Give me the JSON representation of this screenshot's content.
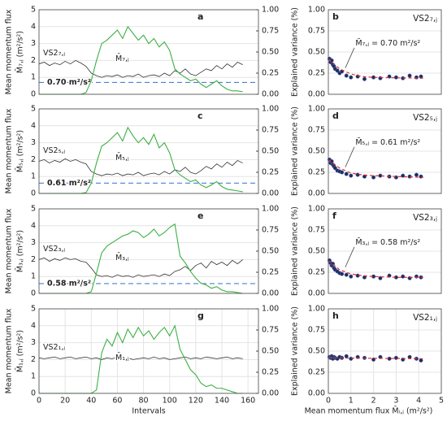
{
  "chart_data": [
    {
      "type": "line",
      "panel": "a",
      "ylabel": [
        "Mean momentum flux",
        "M̄₇,ⱼ (m²/s²)"
      ],
      "y2label": "Explained variance (%)",
      "x": [
        0,
        4,
        8,
        12,
        16,
        20,
        24,
        28,
        32,
        36,
        40,
        44,
        48,
        52,
        56,
        60,
        64,
        68,
        72,
        76,
        80,
        84,
        88,
        92,
        96,
        100,
        104,
        108,
        112,
        116,
        120,
        124,
        128,
        132,
        136,
        140,
        144,
        148,
        152,
        156
      ],
      "xlim": [
        0,
        168
      ],
      "ylim": [
        0,
        5
      ],
      "yticks": [
        0,
        1,
        2,
        3,
        4,
        5
      ],
      "y2lim": [
        0,
        1
      ],
      "y2ticks": [
        {
          "value": 0,
          "label": "0.00"
        },
        {
          "value": 0.25,
          "label": "0.25"
        },
        {
          "value": 0.5,
          "label": "0.50"
        },
        {
          "value": 0.75,
          "label": "0.75"
        },
        {
          "value": 1,
          "label": "1.00"
        }
      ],
      "series": [
        {
          "name": "VS2₇,ⱼ",
          "color": "#333333",
          "axis": "y2",
          "values": [
            0.36,
            0.38,
            0.34,
            0.37,
            0.35,
            0.39,
            0.36,
            0.4,
            0.37,
            0.33,
            0.25,
            0.22,
            0.2,
            0.22,
            0.21,
            0.23,
            0.2,
            0.22,
            0.21,
            0.24,
            0.2,
            0.22,
            0.23,
            0.21,
            0.25,
            0.22,
            0.28,
            0.25,
            0.3,
            0.24,
            0.22,
            0.26,
            0.3,
            0.28,
            0.34,
            0.3,
            0.36,
            0.32,
            0.38,
            0.35
          ]
        },
        {
          "name": "M̄₇,ⱼ",
          "color": "#3cb043",
          "values": [
            0,
            0,
            0,
            0,
            0,
            0,
            0,
            0,
            0,
            0.1,
            0.8,
            2.0,
            3.0,
            3.2,
            3.5,
            3.8,
            3.3,
            4.0,
            3.6,
            3.2,
            3.5,
            3.0,
            3.3,
            2.8,
            3.1,
            2.6,
            1.5,
            1.2,
            1.0,
            0.8,
            0.9,
            0.6,
            0.4,
            0.6,
            0.8,
            0.5,
            0.3,
            0.2,
            0.2,
            0.15
          ]
        }
      ],
      "hline": {
        "value": 0.7,
        "label": "0.70 m²/s²",
        "color": "#4a7fd4"
      }
    },
    {
      "type": "scatter",
      "panel": "b",
      "label": "VS2₇,ⱼ",
      "color": "#1f2d5a",
      "xlim": [
        0,
        5
      ],
      "ylim": [
        0,
        1
      ],
      "yticks": [
        {
          "value": 0,
          "label": "0.00"
        },
        {
          "value": 0.25,
          "label": "0.25"
        },
        {
          "value": 0.5,
          "label": "0.50"
        },
        {
          "value": 0.75,
          "label": "0.75"
        },
        {
          "value": 1,
          "label": "1.00"
        }
      ],
      "x": [
        0.05,
        0.1,
        0.15,
        0.2,
        0.25,
        0.3,
        0.4,
        0.5,
        0.6,
        0.8,
        1.0,
        1.3,
        1.6,
        2.0,
        2.3,
        2.7,
        3.0,
        3.3,
        3.6,
        3.9,
        4.1
      ],
      "values": [
        0.42,
        0.38,
        0.4,
        0.35,
        0.33,
        0.3,
        0.28,
        0.25,
        0.27,
        0.22,
        0.2,
        0.21,
        0.18,
        0.2,
        0.19,
        0.21,
        0.2,
        0.19,
        0.22,
        0.2,
        0.21
      ],
      "fit": {
        "color": "#e03030",
        "x": [
          0,
          0.5,
          1,
          1.5,
          2,
          3,
          4.2
        ],
        "values": [
          0.42,
          0.3,
          0.24,
          0.21,
          0.2,
          0.195,
          0.19
        ]
      },
      "annotation": "M̄₇,ⱼ = 0.70 m²/s²"
    },
    {
      "type": "line",
      "panel": "c",
      "ylabel": [
        "Mean momentum flux",
        "M̄₅,ⱼ (m²/s²)"
      ],
      "y2label": "Explained variance (%)",
      "x": [
        0,
        4,
        8,
        12,
        16,
        20,
        24,
        28,
        32,
        36,
        40,
        44,
        48,
        52,
        56,
        60,
        64,
        68,
        72,
        76,
        80,
        84,
        88,
        92,
        96,
        100,
        104,
        108,
        112,
        116,
        120,
        124,
        128,
        132,
        136,
        140,
        144,
        148,
        152,
        156
      ],
      "xlim": [
        0,
        168
      ],
      "ylim": [
        0,
        5
      ],
      "yticks": [
        0,
        1,
        2,
        3,
        4,
        5
      ],
      "y2lim": [
        0,
        1
      ],
      "y2ticks": [
        {
          "value": 0,
          "label": "0.00"
        },
        {
          "value": 0.25,
          "label": "0.25"
        },
        {
          "value": 0.5,
          "label": "0.50"
        },
        {
          "value": 0.75,
          "label": "0.75"
        },
        {
          "value": 1,
          "label": "1.00"
        }
      ],
      "series": [
        {
          "name": "VS2₅,ⱼ",
          "color": "#333333",
          "axis": "y2",
          "values": [
            0.38,
            0.4,
            0.36,
            0.39,
            0.37,
            0.41,
            0.38,
            0.4,
            0.37,
            0.35,
            0.26,
            0.23,
            0.21,
            0.23,
            0.22,
            0.24,
            0.21,
            0.23,
            0.22,
            0.25,
            0.21,
            0.23,
            0.24,
            0.22,
            0.26,
            0.23,
            0.28,
            0.26,
            0.31,
            0.25,
            0.23,
            0.27,
            0.32,
            0.29,
            0.35,
            0.31,
            0.37,
            0.33,
            0.39,
            0.36
          ]
        },
        {
          "name": "M̄₅,ⱼ",
          "color": "#3cb043",
          "values": [
            0,
            0,
            0,
            0,
            0,
            0,
            0,
            0,
            0,
            0.05,
            0.6,
            1.8,
            2.8,
            3.0,
            3.3,
            3.6,
            3.1,
            3.9,
            3.4,
            3.0,
            3.3,
            2.9,
            3.5,
            2.7,
            3.0,
            2.4,
            1.4,
            1.1,
            0.9,
            0.7,
            0.8,
            0.5,
            0.35,
            0.5,
            0.7,
            0.4,
            0.25,
            0.2,
            0.15,
            0.1
          ]
        }
      ],
      "hline": {
        "value": 0.61,
        "label": "0.61 m²/s²",
        "color": "#4a7fd4"
      }
    },
    {
      "type": "scatter",
      "panel": "d",
      "label": "VS2₅,ⱼ",
      "color": "#1f2d5a",
      "xlim": [
        0,
        5
      ],
      "ylim": [
        0,
        1
      ],
      "yticks": [
        {
          "value": 0,
          "label": "0.00"
        },
        {
          "value": 0.25,
          "label": "0.25"
        },
        {
          "value": 0.5,
          "label": "0.50"
        },
        {
          "value": 0.75,
          "label": "0.75"
        },
        {
          "value": 1,
          "label": "1.00"
        }
      ],
      "x": [
        0.05,
        0.1,
        0.15,
        0.2,
        0.25,
        0.3,
        0.4,
        0.5,
        0.6,
        0.8,
        1.0,
        1.3,
        1.6,
        2.0,
        2.3,
        2.7,
        3.0,
        3.3,
        3.6,
        3.9,
        4.1
      ],
      "values": [
        0.4,
        0.36,
        0.38,
        0.34,
        0.32,
        0.3,
        0.27,
        0.26,
        0.25,
        0.23,
        0.21,
        0.22,
        0.2,
        0.19,
        0.21,
        0.2,
        0.19,
        0.21,
        0.2,
        0.22,
        0.2
      ],
      "fit": {
        "color": "#e03030",
        "x": [
          0,
          0.5,
          1,
          1.5,
          2,
          3,
          4.2
        ],
        "values": [
          0.4,
          0.3,
          0.24,
          0.22,
          0.21,
          0.2,
          0.19
        ]
      },
      "annotation": "M̄₅,ⱼ = 0.61 m²/s²"
    },
    {
      "type": "line",
      "panel": "e",
      "ylabel": [
        "Mean momentum flux",
        "M̄₃,ⱼ (m²/s²)"
      ],
      "y2label": "Explained variance (%)",
      "x": [
        0,
        4,
        8,
        12,
        16,
        20,
        24,
        28,
        32,
        36,
        40,
        44,
        48,
        52,
        56,
        60,
        64,
        68,
        72,
        76,
        80,
        84,
        88,
        92,
        96,
        100,
        104,
        108,
        112,
        116,
        120,
        124,
        128,
        132,
        136,
        140,
        144,
        148,
        152,
        156
      ],
      "xlim": [
        0,
        168
      ],
      "ylim": [
        0,
        5
      ],
      "yticks": [
        0,
        1,
        2,
        3,
        4,
        5
      ],
      "y2lim": [
        0,
        1
      ],
      "y2ticks": [
        {
          "value": 0,
          "label": "0.00"
        },
        {
          "value": 0.25,
          "label": "0.25"
        },
        {
          "value": 0.5,
          "label": "0.50"
        },
        {
          "value": 0.75,
          "label": "0.75"
        },
        {
          "value": 1,
          "label": "1.00"
        }
      ],
      "series": [
        {
          "name": "VS2₃,ⱼ",
          "color": "#333333",
          "axis": "y2",
          "values": [
            0.4,
            0.42,
            0.38,
            0.41,
            0.39,
            0.42,
            0.4,
            0.41,
            0.38,
            0.37,
            0.3,
            0.22,
            0.2,
            0.21,
            0.19,
            0.22,
            0.2,
            0.21,
            0.19,
            0.22,
            0.2,
            0.21,
            0.22,
            0.2,
            0.23,
            0.21,
            0.26,
            0.28,
            0.32,
            0.27,
            0.33,
            0.36,
            0.3,
            0.38,
            0.34,
            0.37,
            0.33,
            0.39,
            0.35,
            0.4
          ]
        },
        {
          "name": "M̄₃,ⱼ",
          "color": "#3cb043",
          "values": [
            0,
            0,
            0,
            0,
            0,
            0,
            0,
            0,
            0,
            0,
            0.1,
            1.2,
            2.4,
            2.8,
            3.0,
            3.2,
            3.4,
            3.5,
            3.7,
            3.6,
            3.3,
            3.5,
            3.8,
            3.4,
            3.6,
            3.9,
            4.1,
            2.2,
            1.8,
            1.3,
            0.9,
            0.6,
            0.5,
            0.3,
            0.4,
            0.2,
            0.1,
            0.1,
            0.05,
            0
          ]
        }
      ],
      "hline": {
        "value": 0.58,
        "label": "0.58 m²/s²",
        "color": "#4a7fd4"
      }
    },
    {
      "type": "scatter",
      "panel": "f",
      "label": "VS2₃,ⱼ",
      "color": "#1f2d5a",
      "xlim": [
        0,
        5
      ],
      "ylim": [
        0,
        1
      ],
      "yticks": [
        {
          "value": 0,
          "label": "0.00"
        },
        {
          "value": 0.25,
          "label": "0.25"
        },
        {
          "value": 0.5,
          "label": "0.50"
        },
        {
          "value": 0.75,
          "label": "0.75"
        },
        {
          "value": 1,
          "label": "1.00"
        }
      ],
      "x": [
        0.05,
        0.1,
        0.15,
        0.2,
        0.25,
        0.3,
        0.4,
        0.5,
        0.6,
        0.8,
        1.0,
        1.3,
        1.6,
        2.0,
        2.3,
        2.7,
        3.0,
        3.3,
        3.6,
        3.9,
        4.1
      ],
      "values": [
        0.39,
        0.36,
        0.33,
        0.35,
        0.3,
        0.28,
        0.26,
        0.24,
        0.23,
        0.22,
        0.2,
        0.21,
        0.19,
        0.2,
        0.18,
        0.21,
        0.19,
        0.2,
        0.18,
        0.2,
        0.19
      ],
      "fit": {
        "color": "#e03030",
        "x": [
          0,
          0.5,
          1,
          1.5,
          2,
          3,
          4.2
        ],
        "values": [
          0.39,
          0.28,
          0.23,
          0.21,
          0.2,
          0.19,
          0.19
        ]
      },
      "annotation": "M̄₃,ⱼ = 0.58 m²/s²"
    },
    {
      "type": "line",
      "panel": "g",
      "ylabel": [
        "Mean momentum flux",
        "M̄₁,ⱼ (m²/s²)"
      ],
      "y2label": "Explained variance (%)",
      "xlabel": "Intervals",
      "x": [
        0,
        4,
        8,
        12,
        16,
        20,
        24,
        28,
        32,
        36,
        40,
        44,
        48,
        52,
        56,
        60,
        64,
        68,
        72,
        76,
        80,
        84,
        88,
        92,
        96,
        100,
        104,
        108,
        112,
        116,
        120,
        124,
        128,
        132,
        136,
        140,
        144,
        148,
        152,
        156
      ],
      "xlim": [
        0,
        168
      ],
      "xticks": [
        0,
        20,
        40,
        60,
        80,
        100,
        120,
        140,
        160
      ],
      "ylim": [
        0,
        5
      ],
      "yticks": [
        0,
        1,
        2,
        3,
        4,
        5
      ],
      "y2lim": [
        0,
        1
      ],
      "y2ticks": [
        {
          "value": 0,
          "label": "0.00"
        },
        {
          "value": 0.25,
          "label": "0.25"
        },
        {
          "value": 0.5,
          "label": "0.50"
        },
        {
          "value": 0.75,
          "label": "0.75"
        },
        {
          "value": 1,
          "label": "1.00"
        }
      ],
      "series": [
        {
          "name": "VS2₁,ⱼ",
          "color": "#333333",
          "axis": "y2",
          "values": [
            0.42,
            0.41,
            0.42,
            0.43,
            0.41,
            0.42,
            0.43,
            0.41,
            0.42,
            0.43,
            0.41,
            0.42,
            0.4,
            0.42,
            0.41,
            0.43,
            0.41,
            0.42,
            0.4,
            0.41,
            0.42,
            0.41,
            0.43,
            0.41,
            0.42,
            0.4,
            0.41,
            0.42,
            0.43,
            0.41,
            0.42,
            0.41,
            0.43,
            0.42,
            0.41,
            0.42,
            0.43,
            0.41,
            0.42,
            0.41
          ]
        },
        {
          "name": "M̄₁,ⱼ",
          "color": "#3cb043",
          "values": [
            0,
            0,
            0,
            0,
            0,
            0,
            0,
            0,
            0,
            0,
            0,
            0.2,
            2.4,
            3.2,
            2.8,
            3.6,
            3.0,
            3.8,
            3.3,
            3.9,
            3.4,
            3.7,
            3.2,
            3.6,
            3.9,
            3.4,
            4.0,
            2.6,
            2.0,
            1.4,
            1.1,
            0.6,
            0.4,
            0.5,
            0.3,
            0.3,
            0.2,
            0.1,
            0,
            0
          ]
        }
      ]
    },
    {
      "type": "scatter",
      "panel": "h",
      "label": "VS2₁,ⱼ",
      "color": "#1f2d5a",
      "xlabel": "Mean momentum flux M̄ᵢ,ⱼ (m²/s²)",
      "xlim": [
        0,
        5
      ],
      "xticks": [
        0,
        1,
        2,
        3,
        4,
        5
      ],
      "ylim": [
        0,
        1
      ],
      "yticks": [
        {
          "value": 0,
          "label": "0.00"
        },
        {
          "value": 0.25,
          "label": "0.25"
        },
        {
          "value": 0.5,
          "label": "0.50"
        },
        {
          "value": 0.75,
          "label": "0.75"
        },
        {
          "value": 1,
          "label": "1.00"
        }
      ],
      "x": [
        0.05,
        0.1,
        0.15,
        0.2,
        0.25,
        0.3,
        0.4,
        0.5,
        0.6,
        0.8,
        1.0,
        1.3,
        1.6,
        2.0,
        2.3,
        2.7,
        3.0,
        3.3,
        3.6,
        3.9,
        4.1
      ],
      "values": [
        0.43,
        0.42,
        0.44,
        0.41,
        0.43,
        0.42,
        0.41,
        0.43,
        0.42,
        0.44,
        0.41,
        0.43,
        0.42,
        0.4,
        0.43,
        0.41,
        0.42,
        0.4,
        0.43,
        0.41,
        0.39
      ],
      "fit": {
        "color": "#e03030",
        "x": [
          0,
          4.2
        ],
        "values": [
          0.42,
          0.41
        ]
      }
    }
  ]
}
